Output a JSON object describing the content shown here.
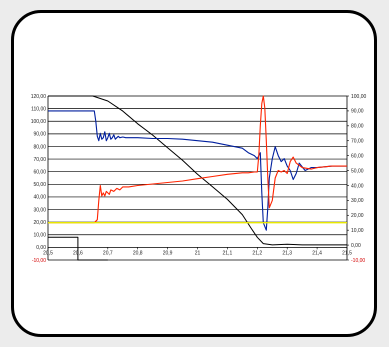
{
  "colors": {
    "background": "#ececec",
    "panel": "#ffffff",
    "black_series": "#000000",
    "blue_series": "#001f9e",
    "red_series": "#ff2400",
    "yellow_series": "#e8e800",
    "neg_tick": "#d40000"
  },
  "chart_data": {
    "type": "line",
    "title": "",
    "xlabel": "",
    "ylabel": "",
    "grid": "horizontal",
    "xlim": [
      20.5,
      21.5
    ],
    "ylim_left": [
      -10,
      120
    ],
    "ylim_right": [
      -10,
      100
    ],
    "x_ticks": [
      "20,5",
      "20,6",
      "20,7",
      "20,8",
      "20,9",
      "21",
      "21,1",
      "21,2",
      "21,3",
      "21,4",
      "21,5"
    ],
    "y_left_ticks": [
      "120,00",
      "110,00",
      "100,00",
      "90,00",
      "80,00",
      "70,00",
      "60,00",
      "50,00",
      "40,00",
      "30,00",
      "20,00",
      "10,00",
      "0,00",
      "-10,00"
    ],
    "y_right_ticks": [
      "100,00",
      "90,00",
      "80,00",
      "70,00",
      "60,00",
      "50,00",
      "40,00",
      "30,00",
      "20,00",
      "10,00",
      "0,00",
      "-10,00"
    ],
    "series": [
      {
        "color": "#000000",
        "axis": "left",
        "stroke": 1,
        "x": [
          20.5,
          20.65,
          20.7,
          20.75,
          20.8,
          20.85,
          20.9,
          20.95,
          21.0,
          21.05,
          21.1,
          21.15,
          21.18,
          21.2,
          21.22,
          21.25,
          21.3,
          21.35,
          21.4,
          21.45,
          21.5
        ],
        "y": [
          120,
          120,
          116,
          108,
          98,
          89,
          79,
          69,
          58,
          48,
          38,
          26,
          15,
          8,
          3,
          2,
          2.5,
          2,
          2,
          2,
          2
        ]
      },
      {
        "color": "#000000",
        "axis": "left",
        "stroke": 1,
        "x": [
          20.5,
          20.6,
          20.6,
          20.7
        ],
        "y": [
          8,
          8,
          -10,
          -10
        ]
      },
      {
        "color": "#001f9e",
        "axis": "right",
        "stroke": 1.1,
        "x": [
          20.5,
          20.655,
          20.66,
          20.665,
          20.67,
          20.675,
          20.68,
          20.685,
          20.69,
          20.695,
          20.7,
          20.705,
          20.71,
          20.715,
          20.72,
          20.725,
          20.73,
          20.735,
          20.74,
          20.75,
          20.76,
          20.77,
          20.8,
          20.85,
          20.9,
          20.95,
          21.0,
          21.05,
          21.1,
          21.15,
          21.17,
          21.19,
          21.2,
          21.21,
          21.215,
          21.22,
          21.23,
          21.235,
          21.24,
          21.25,
          21.26,
          21.27,
          21.28,
          21.29,
          21.3,
          21.31,
          21.32,
          21.33,
          21.34,
          21.36,
          21.38,
          21.4,
          21.45,
          21.5
        ],
        "y": [
          90,
          90,
          83,
          73,
          70,
          75,
          71,
          72,
          76,
          70,
          72,
          75,
          71,
          72,
          74,
          71,
          72,
          73,
          72,
          72.5,
          72,
          72,
          72,
          71.5,
          71.5,
          71,
          70,
          69,
          67,
          65,
          62,
          60,
          58,
          62,
          35,
          15,
          10,
          25,
          45,
          58,
          66,
          60,
          56,
          58,
          53,
          50,
          44,
          48,
          55,
          50,
          52,
          52,
          53,
          53
        ]
      },
      {
        "color": "#ff2400",
        "axis": "right",
        "stroke": 1.1,
        "x": [
          20.5,
          20.655,
          20.665,
          20.67,
          20.675,
          20.68,
          20.685,
          20.69,
          20.695,
          20.7,
          20.705,
          20.71,
          20.72,
          20.73,
          20.74,
          20.75,
          20.77,
          20.8,
          20.85,
          20.9,
          20.95,
          21.0,
          21.05,
          21.1,
          21.15,
          21.17,
          21.19,
          21.2,
          21.205,
          21.21,
          21.215,
          21.22,
          21.225,
          21.23,
          21.235,
          21.24,
          21.25,
          21.26,
          21.27,
          21.28,
          21.29,
          21.3,
          21.31,
          21.32,
          21.33,
          21.35,
          21.38,
          21.4,
          21.45,
          21.5
        ],
        "y": [
          15,
          15,
          17,
          30,
          40,
          33,
          35,
          33,
          36,
          35,
          34,
          37,
          36,
          38,
          37,
          39,
          39,
          40,
          41,
          42,
          43,
          44.5,
          46,
          47.5,
          48.5,
          48.5,
          49,
          49,
          60,
          80,
          95,
          100,
          92,
          70,
          45,
          25,
          30,
          45,
          50,
          49,
          50,
          48,
          56,
          59,
          55,
          52,
          51,
          52,
          53,
          53
        ]
      },
      {
        "color": "#e8e800",
        "axis": "right",
        "stroke": 1.4,
        "x": [
          20.5,
          21.5
        ],
        "y": [
          15,
          15
        ]
      }
    ]
  }
}
